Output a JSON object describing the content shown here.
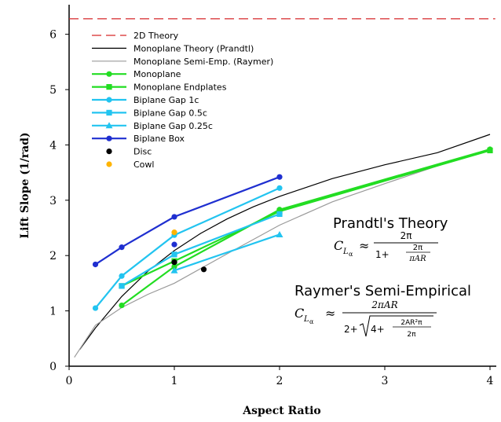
{
  "chart_data": {
    "type": "line",
    "title": "",
    "xlabel": "Aspect Ratio",
    "ylabel": "Lift Slope (1/rad)",
    "xlim": [
      0,
      4.05
    ],
    "ylim": [
      0,
      6.5
    ],
    "xticks": [
      "0",
      "1",
      "2",
      "3",
      "4"
    ],
    "yticks": [
      "0",
      "1",
      "2",
      "3",
      "4",
      "5",
      "6"
    ],
    "grid": false,
    "legend_position": "top-left",
    "series": [
      {
        "name": "2D Theory",
        "color": "#d62728",
        "style": "dashed",
        "marker": "none",
        "points": [
          [
            0,
            6.28
          ],
          [
            4.05,
            6.28
          ]
        ]
      },
      {
        "name": "Monoplane Theory (Prandtl)",
        "color": "#000000",
        "style": "solid",
        "marker": "none",
        "points": [
          [
            0.1,
            0.3
          ],
          [
            0.25,
            0.69
          ],
          [
            0.5,
            1.26
          ],
          [
            0.75,
            1.72
          ],
          [
            1.0,
            2.09
          ],
          [
            1.25,
            2.4
          ],
          [
            1.5,
            2.66
          ],
          [
            1.75,
            2.88
          ],
          [
            2.0,
            3.07
          ],
          [
            2.5,
            3.39
          ],
          [
            3.0,
            3.64
          ],
          [
            3.5,
            3.86
          ],
          [
            4.0,
            4.19
          ]
        ]
      },
      {
        "name": "Monoplane Semi-Emp. (Raymer)",
        "color": "#9a9a9a",
        "style": "solid",
        "marker": "none",
        "points": [
          [
            0.05,
            0.16
          ],
          [
            0.25,
            0.74
          ],
          [
            0.5,
            1.06
          ],
          [
            0.75,
            1.3
          ],
          [
            1.0,
            1.5
          ],
          [
            1.5,
            2.03
          ],
          [
            2.0,
            2.55
          ],
          [
            2.5,
            2.97
          ],
          [
            3.0,
            3.3
          ],
          [
            3.5,
            3.62
          ],
          [
            4.0,
            3.93
          ]
        ]
      },
      {
        "name": "Monoplane",
        "color": "#22dd22",
        "style": "solid",
        "marker": "circle",
        "points": [
          [
            0.5,
            1.1
          ],
          [
            1.0,
            1.8
          ],
          [
            2.0,
            2.83
          ],
          [
            4.0,
            3.92
          ]
        ]
      },
      {
        "name": "Monoplane Endplates",
        "color": "#22dd22",
        "style": "solid",
        "marker": "square",
        "points": [
          [
            0.5,
            1.45
          ],
          [
            1.0,
            1.9
          ],
          [
            2.0,
            2.8
          ],
          [
            4.0,
            3.9
          ]
        ]
      },
      {
        "name": "Biplane Gap 1c",
        "color": "#22c4f0",
        "style": "solid",
        "marker": "circle",
        "points": [
          [
            0.25,
            1.05
          ],
          [
            0.5,
            1.63
          ],
          [
            1.0,
            2.37
          ],
          [
            2.0,
            3.22
          ]
        ]
      },
      {
        "name": "Biplane Gap 0.5c",
        "color": "#22c4f0",
        "style": "solid",
        "marker": "square",
        "points": [
          [
            0.5,
            1.45
          ],
          [
            1.0,
            2.02
          ],
          [
            2.0,
            2.75
          ]
        ]
      },
      {
        "name": "Biplane Gap 0.25c",
        "color": "#22c4f0",
        "style": "solid",
        "marker": "triangle",
        "points": [
          [
            1.0,
            1.73
          ],
          [
            2.0,
            2.38
          ]
        ]
      },
      {
        "name": "Biplane Box",
        "color": "#1f2fd0",
        "style": "solid",
        "marker": "circle",
        "points": [
          [
            0.25,
            1.84
          ],
          [
            0.5,
            2.15
          ],
          [
            1.0,
            2.7
          ],
          [
            2.0,
            3.42
          ]
        ]
      },
      {
        "name": "Disc",
        "color": "#000000",
        "style": "none",
        "marker": "circle",
        "points": [
          [
            1.0,
            1.88
          ],
          [
            1.28,
            1.75
          ]
        ]
      },
      {
        "name": "Cowl",
        "color": "#ffb400",
        "style": "none",
        "marker": "circle",
        "points": [
          [
            1.0,
            2.42
          ]
        ]
      }
    ],
    "extra_markers": [
      {
        "color": "#1f2fd0",
        "marker": "circle",
        "points": [
          [
            1.0,
            2.2
          ]
        ]
      }
    ],
    "annotations": {
      "prandtl_title": "Prandtl's Theory",
      "raymer_title": "Raymer's Semi-Empirical"
    }
  }
}
